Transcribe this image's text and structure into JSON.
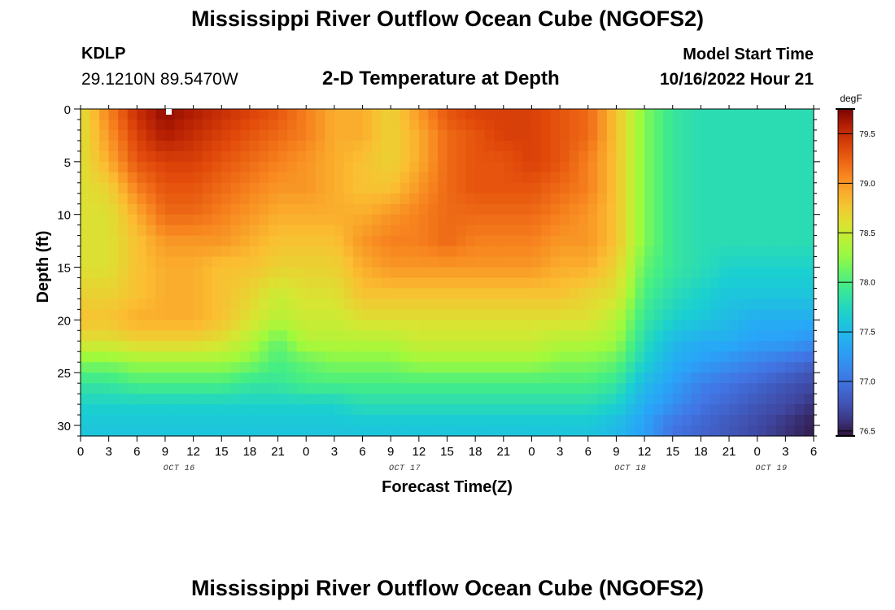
{
  "header": {
    "title": "Mississippi River Outflow Ocean Cube (NGOFS2)",
    "station_id": "KDLP",
    "station_coords": "29.1210N  89.5470W",
    "subtitle": "2-D Temperature at Depth",
    "model_start_label": "Model Start Time",
    "model_start_value": "10/16/2022 Hour 21"
  },
  "footer": {
    "title": "Mississippi River Outflow Ocean Cube (NGOFS2)"
  },
  "chart_data": {
    "type": "heatmap",
    "xlabel": "Forecast Time(Z)",
    "ylabel": "Depth (ft)",
    "x_tick_labels": [
      "0",
      "3",
      "6",
      "9",
      "12",
      "15",
      "18",
      "21",
      "0",
      "3",
      "6",
      "9",
      "12",
      "15",
      "18",
      "21",
      "0",
      "3",
      "6",
      "9",
      "12",
      "15",
      "18",
      "21",
      "0",
      "3",
      "6"
    ],
    "day_labels": [
      {
        "label": "OCT 16",
        "at_tick": 3.5
      },
      {
        "label": "OCT 17",
        "at_tick": 11.5
      },
      {
        "label": "OCT 18",
        "at_tick": 19.5
      },
      {
        "label": "OCT 19",
        "at_tick": 24.5
      }
    ],
    "y_ticks": [
      0,
      5,
      10,
      15,
      20,
      25,
      30
    ],
    "ylim": [
      31,
      0
    ],
    "colorbar": {
      "unit": "degF",
      "range": [
        76.45,
        79.75
      ],
      "ticks": [
        {
          "value": 79.5,
          "label": "79.5"
        },
        {
          "value": 79.0,
          "label": "79.0"
        },
        {
          "value": 78.5,
          "label": "78.5"
        },
        {
          "value": 78.0,
          "label": "78.0"
        },
        {
          "value": 77.5,
          "label": "77.5"
        },
        {
          "value": 77.0,
          "label": "77.0"
        },
        {
          "value": 76.5,
          "label": "76.5"
        }
      ]
    },
    "depth_levels_ft": [
      0,
      2.5,
      5,
      7.5,
      10,
      12.5,
      15,
      17.5,
      20,
      22,
      24,
      26,
      28,
      30
    ],
    "time_nodes_hours": [
      0,
      3,
      6,
      9,
      12,
      15,
      18,
      21,
      24,
      27,
      30,
      33,
      36,
      39,
      42,
      45,
      48,
      51,
      54,
      57,
      60,
      63,
      66,
      69,
      72,
      75,
      78
    ],
    "temperature_profiles": [
      {
        "hour": 0,
        "temps": [
          78.6,
          78.6,
          78.6,
          78.6,
          78.6,
          78.6,
          78.6,
          78.7,
          78.8,
          78.6,
          78.2,
          77.9,
          77.7,
          77.6
        ]
      },
      {
        "hour": 3,
        "temps": [
          79.1,
          79.0,
          78.9,
          78.7,
          78.6,
          78.6,
          78.6,
          78.7,
          78.8,
          78.6,
          78.2,
          77.9,
          77.7,
          77.6
        ]
      },
      {
        "hour": 6,
        "temps": [
          79.5,
          79.4,
          79.3,
          79.1,
          78.9,
          78.8,
          78.8,
          78.8,
          78.9,
          78.7,
          78.3,
          78.0,
          77.7,
          77.6
        ]
      },
      {
        "hour": 9,
        "temps": [
          79.7,
          79.6,
          79.4,
          79.3,
          79.2,
          79.0,
          78.9,
          78.9,
          78.9,
          78.7,
          78.3,
          78.0,
          77.7,
          77.6
        ]
      },
      {
        "hour": 12,
        "temps": [
          79.6,
          79.5,
          79.4,
          79.3,
          79.2,
          79.0,
          78.9,
          78.9,
          78.9,
          78.7,
          78.3,
          78.0,
          77.7,
          77.6
        ]
      },
      {
        "hour": 15,
        "temps": [
          79.5,
          79.4,
          79.3,
          79.2,
          79.1,
          79.0,
          78.8,
          78.8,
          78.8,
          78.6,
          78.3,
          78.0,
          77.7,
          77.6
        ]
      },
      {
        "hour": 18,
        "temps": [
          79.4,
          79.3,
          79.2,
          79.1,
          79.0,
          78.9,
          78.8,
          78.7,
          78.6,
          78.4,
          78.2,
          77.9,
          77.7,
          77.6
        ]
      },
      {
        "hour": 21,
        "temps": [
          79.3,
          79.2,
          79.1,
          79.0,
          78.9,
          78.8,
          78.7,
          78.5,
          78.4,
          78.1,
          78.0,
          77.9,
          77.7,
          77.6
        ]
      },
      {
        "hour": 24,
        "temps": [
          79.1,
          79.1,
          79.0,
          79.0,
          78.9,
          78.8,
          78.7,
          78.6,
          78.5,
          78.4,
          78.1,
          78.0,
          77.7,
          77.6
        ]
      },
      {
        "hour": 27,
        "temps": [
          78.9,
          78.9,
          78.9,
          78.9,
          78.9,
          78.8,
          78.7,
          78.6,
          78.5,
          78.4,
          78.2,
          78.0,
          77.7,
          77.6
        ]
      },
      {
        "hour": 30,
        "temps": [
          78.9,
          78.9,
          78.8,
          78.8,
          78.9,
          79.0,
          78.9,
          78.8,
          78.6,
          78.4,
          78.2,
          78.0,
          77.8,
          77.6
        ]
      },
      {
        "hour": 33,
        "temps": [
          78.7,
          78.7,
          78.7,
          78.8,
          79.0,
          79.1,
          79.0,
          78.8,
          78.6,
          78.4,
          78.2,
          78.0,
          77.8,
          77.6
        ]
      },
      {
        "hour": 36,
        "temps": [
          79.0,
          78.9,
          78.9,
          79.0,
          79.1,
          79.1,
          79.0,
          78.8,
          78.6,
          78.5,
          78.3,
          78.0,
          77.8,
          77.6
        ]
      },
      {
        "hour": 39,
        "temps": [
          79.3,
          79.2,
          79.2,
          79.2,
          79.2,
          79.2,
          79.0,
          78.8,
          78.6,
          78.5,
          78.3,
          78.0,
          77.8,
          77.6
        ]
      },
      {
        "hour": 42,
        "temps": [
          79.4,
          79.3,
          79.3,
          79.3,
          79.2,
          79.1,
          79.0,
          78.8,
          78.6,
          78.5,
          78.3,
          78.0,
          77.8,
          77.6
        ]
      },
      {
        "hour": 45,
        "temps": [
          79.4,
          79.4,
          79.3,
          79.3,
          79.2,
          79.1,
          79.0,
          78.8,
          78.6,
          78.5,
          78.3,
          78.0,
          77.8,
          77.6
        ]
      },
      {
        "hour": 48,
        "temps": [
          79.4,
          79.4,
          79.4,
          79.3,
          79.2,
          79.1,
          79.0,
          78.8,
          78.6,
          78.5,
          78.3,
          78.0,
          77.8,
          77.6
        ]
      },
      {
        "hour": 51,
        "temps": [
          79.3,
          79.3,
          79.3,
          79.2,
          79.1,
          79.0,
          78.9,
          78.8,
          78.6,
          78.4,
          78.2,
          78.0,
          77.8,
          77.6
        ]
      },
      {
        "hour": 54,
        "temps": [
          79.2,
          79.2,
          79.1,
          79.1,
          79.0,
          79.0,
          78.9,
          78.7,
          78.6,
          78.4,
          78.2,
          78.0,
          77.8,
          77.6
        ]
      },
      {
        "hour": 57,
        "temps": [
          78.8,
          78.8,
          78.8,
          78.8,
          78.8,
          78.8,
          78.7,
          78.6,
          78.4,
          78.3,
          78.1,
          77.9,
          77.7,
          77.5
        ]
      },
      {
        "hour": 60,
        "temps": [
          78.2,
          78.2,
          78.2,
          78.2,
          78.2,
          78.2,
          78.1,
          78.0,
          77.9,
          77.8,
          77.7,
          77.5,
          77.4,
          77.3
        ]
      },
      {
        "hour": 63,
        "temps": [
          77.9,
          77.9,
          77.9,
          77.9,
          77.9,
          77.9,
          77.9,
          77.8,
          77.7,
          77.5,
          77.4,
          77.3,
          77.2,
          77.0
        ]
      },
      {
        "hour": 66,
        "temps": [
          77.8,
          77.8,
          77.8,
          77.8,
          77.8,
          77.8,
          77.8,
          77.7,
          77.6,
          77.4,
          77.3,
          77.1,
          77.0,
          76.9
        ]
      },
      {
        "hour": 69,
        "temps": [
          77.8,
          77.8,
          77.8,
          77.8,
          77.8,
          77.8,
          77.7,
          77.6,
          77.5,
          77.4,
          77.2,
          77.0,
          76.9,
          76.8
        ]
      },
      {
        "hour": 72,
        "temps": [
          77.8,
          77.8,
          77.8,
          77.8,
          77.8,
          77.8,
          77.7,
          77.6,
          77.4,
          77.3,
          77.1,
          76.9,
          76.8,
          76.7
        ]
      },
      {
        "hour": 75,
        "temps": [
          77.8,
          77.8,
          77.8,
          77.8,
          77.8,
          77.8,
          77.7,
          77.6,
          77.4,
          77.3,
          77.0,
          76.8,
          76.7,
          76.6
        ]
      },
      {
        "hour": 78,
        "temps": [
          77.8,
          77.8,
          77.8,
          77.8,
          77.8,
          77.8,
          77.7,
          77.6,
          77.4,
          77.2,
          76.9,
          76.7,
          76.6,
          76.5
        ]
      }
    ]
  }
}
